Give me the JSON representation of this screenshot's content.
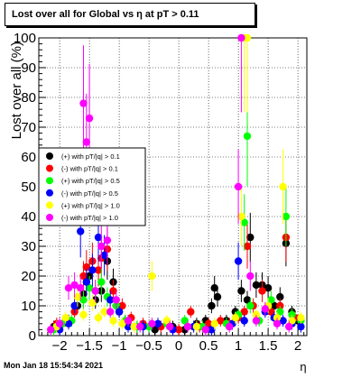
{
  "page": {
    "title": "Lost over all for Global vs    η at pT > 0.11",
    "timestamp": "Mon Jan 18 15:54:34 2021"
  },
  "chart_data": {
    "type": "scatter",
    "title": "Lost over all for Global vs    η at pT > 0.11",
    "xlabel": "η",
    "ylabel": "Lost over all (%)",
    "xlim": [
      -2.35,
      2.15
    ],
    "ylim": [
      0,
      100
    ],
    "x_ticks": [
      -2,
      -1.5,
      -1,
      -0.5,
      0,
      0.5,
      1,
      1.5,
      2
    ],
    "x_tick_labels": [
      "−2",
      "−1.5",
      "−1",
      "−0.5",
      "0",
      "0.5",
      "1",
      "1.5",
      "2"
    ],
    "y_ticks": [
      0,
      10,
      20,
      30,
      40,
      50,
      60,
      70,
      80,
      90,
      100
    ],
    "y_tick_labels": [
      "0",
      "10",
      "20",
      "30",
      "40",
      "50",
      "60",
      "70",
      "80",
      "90",
      "100"
    ],
    "grid": true,
    "legend_position": "middle-left",
    "series": [
      {
        "name": "(+) with pT/|q| > 0.1",
        "color": "#000000",
        "points": [
          [
            -2.1,
            3
          ],
          [
            -1.85,
            5
          ],
          [
            -1.7,
            10
          ],
          [
            -1.6,
            14
          ],
          [
            -1.5,
            20
          ],
          [
            -1.4,
            12
          ],
          [
            -1.3,
            15
          ],
          [
            -1.2,
            25
          ],
          [
            -1.1,
            18
          ],
          [
            -1.0,
            8
          ],
          [
            -0.9,
            5
          ],
          [
            -0.7,
            3
          ],
          [
            -0.4,
            2
          ],
          [
            -0.1,
            3
          ],
          [
            0.1,
            2
          ],
          [
            0.3,
            4
          ],
          [
            0.45,
            5
          ],
          [
            0.55,
            10
          ],
          [
            0.6,
            16
          ],
          [
            0.65,
            13
          ],
          [
            0.8,
            5
          ],
          [
            0.95,
            8
          ],
          [
            1.05,
            15
          ],
          [
            1.15,
            12
          ],
          [
            1.2,
            33
          ],
          [
            1.3,
            17
          ],
          [
            1.4,
            17
          ],
          [
            1.5,
            16
          ],
          [
            1.6,
            10
          ],
          [
            1.7,
            13
          ],
          [
            1.8,
            31
          ],
          [
            1.9,
            8
          ],
          [
            2.0,
            5
          ]
        ]
      },
      {
        "name": "(-) with pT/|q| > 0.1",
        "color": "#ff0000",
        "points": [
          [
            -2.05,
            4
          ],
          [
            -1.9,
            5
          ],
          [
            -1.75,
            8
          ],
          [
            -1.6,
            20
          ],
          [
            -1.55,
            23
          ],
          [
            -1.45,
            25
          ],
          [
            -1.35,
            22
          ],
          [
            -1.3,
            26
          ],
          [
            -1.2,
            29
          ],
          [
            -1.1,
            15
          ],
          [
            -0.95,
            10
          ],
          [
            -0.8,
            6
          ],
          [
            -0.6,
            4
          ],
          [
            -0.3,
            3
          ],
          [
            0.0,
            2
          ],
          [
            0.2,
            8
          ],
          [
            0.35,
            3
          ],
          [
            0.5,
            4
          ],
          [
            0.7,
            5
          ],
          [
            0.85,
            4
          ],
          [
            1.0,
            6
          ],
          [
            1.1,
            8
          ],
          [
            1.15,
            30
          ],
          [
            1.25,
            10
          ],
          [
            1.4,
            15
          ],
          [
            1.55,
            8
          ],
          [
            1.7,
            10
          ],
          [
            1.8,
            33
          ],
          [
            1.95,
            6
          ]
        ]
      },
      {
        "name": "(+) with pT/|q| > 0.5",
        "color": "#00ff00",
        "points": [
          [
            -2.1,
            2
          ],
          [
            -1.95,
            4
          ],
          [
            -1.8,
            5
          ],
          [
            -1.6,
            12
          ],
          [
            -1.5,
            16
          ],
          [
            -1.4,
            15
          ],
          [
            -1.3,
            18
          ],
          [
            -1.2,
            13
          ],
          [
            -1.05,
            10
          ],
          [
            -0.9,
            5
          ],
          [
            -0.7,
            3
          ],
          [
            -0.5,
            3
          ],
          [
            -0.2,
            4
          ],
          [
            0.1,
            5
          ],
          [
            0.4,
            3
          ],
          [
            0.8,
            4
          ],
          [
            1.0,
            7
          ],
          [
            1.1,
            38
          ],
          [
            1.15,
            67
          ],
          [
            1.2,
            10
          ],
          [
            1.35,
            5
          ],
          [
            1.55,
            12
          ],
          [
            1.7,
            8
          ],
          [
            1.8,
            40
          ],
          [
            1.9,
            7
          ],
          [
            2.05,
            5
          ]
        ]
      },
      {
        "name": "(-) with pT/|q| > 0.5",
        "color": "#0000ff",
        "points": [
          [
            -2.0,
            2
          ],
          [
            -1.85,
            4
          ],
          [
            -1.75,
            10
          ],
          [
            -1.65,
            35
          ],
          [
            -1.55,
            18
          ],
          [
            -1.45,
            22
          ],
          [
            -1.35,
            33
          ],
          [
            -1.25,
            27
          ],
          [
            -1.15,
            12
          ],
          [
            -1.0,
            8
          ],
          [
            -0.85,
            3
          ],
          [
            -0.6,
            3
          ],
          [
            -0.35,
            4
          ],
          [
            -0.1,
            2
          ],
          [
            0.25,
            3
          ],
          [
            0.55,
            2
          ],
          [
            0.9,
            4
          ],
          [
            1.0,
            25
          ],
          [
            1.1,
            5
          ],
          [
            1.45,
            8
          ],
          [
            1.6,
            6
          ],
          [
            1.75,
            5
          ],
          [
            1.9,
            4
          ],
          [
            2.05,
            3
          ]
        ]
      },
      {
        "name": "(+) with pT/|q| > 1.0",
        "color": "#ffff00",
        "points": [
          [
            -2.05,
            3
          ],
          [
            -1.9,
            6
          ],
          [
            -1.7,
            13
          ],
          [
            -1.6,
            7
          ],
          [
            -1.45,
            11
          ],
          [
            -1.35,
            6
          ],
          [
            -1.25,
            8
          ],
          [
            -1.1,
            5
          ],
          [
            -0.95,
            4
          ],
          [
            -0.75,
            3
          ],
          [
            -0.45,
            20
          ],
          [
            -0.2,
            5
          ],
          [
            0.3,
            3
          ],
          [
            0.6,
            4
          ],
          [
            0.95,
            6
          ],
          [
            1.05,
            40
          ],
          [
            1.1,
            100
          ],
          [
            1.15,
            100
          ],
          [
            1.3,
            7
          ],
          [
            1.5,
            10
          ],
          [
            1.65,
            6
          ],
          [
            1.75,
            50
          ],
          [
            1.9,
            5
          ],
          [
            2.05,
            6
          ]
        ]
      },
      {
        "name": "(-) with pT/|q| > 1.0",
        "color": "#ff00ff",
        "points": [
          [
            -2.15,
            2
          ],
          [
            -2.0,
            4
          ],
          [
            -1.85,
            16
          ],
          [
            -1.75,
            17
          ],
          [
            -1.65,
            16
          ],
          [
            -1.6,
            78
          ],
          [
            -1.55,
            65
          ],
          [
            -1.5,
            73
          ],
          [
            -1.4,
            15
          ],
          [
            -1.3,
            30
          ],
          [
            -1.2,
            32
          ],
          [
            -1.15,
            8
          ],
          [
            -1.05,
            12
          ],
          [
            -0.85,
            5
          ],
          [
            -0.65,
            3
          ],
          [
            -0.45,
            4
          ],
          [
            -0.15,
            3
          ],
          [
            0.15,
            3
          ],
          [
            0.45,
            2
          ],
          [
            0.85,
            3
          ],
          [
            1.0,
            50
          ],
          [
            1.05,
            100
          ],
          [
            1.2,
            20
          ],
          [
            1.3,
            5
          ],
          [
            1.45,
            9
          ],
          [
            1.65,
            4
          ],
          [
            1.85,
            3
          ]
        ]
      }
    ]
  }
}
